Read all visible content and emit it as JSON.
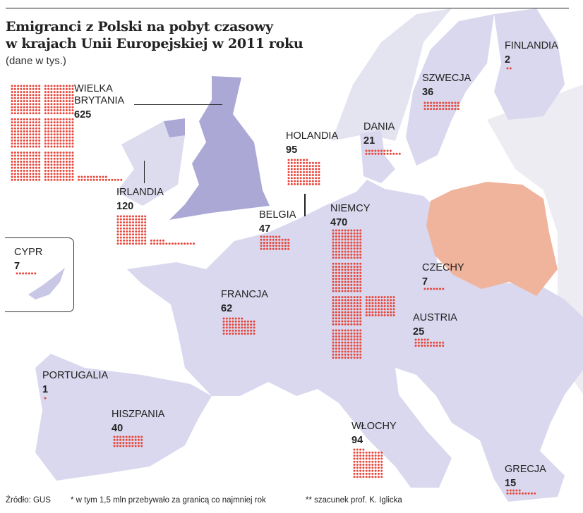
{
  "title_line1": "Emigranci z Polski na pobyt czasowy",
  "title_line2": "w krajach Unii Europejskiej w 2011 roku",
  "subtitle": "(dane w tys.)",
  "colors": {
    "eu_land": "#d9d8ee",
    "uk": "#aba8d6",
    "poland": "#f0b39c",
    "non_eu_land": "#ececf2",
    "dot": "#e8463b",
    "sea": "#ffffff"
  },
  "countries": [
    {
      "id": "uk",
      "label_lines": [
        "WIELKA",
        "BRYTANIA"
      ],
      "value": "625"
    },
    {
      "id": "ireland",
      "label_lines": [
        "IRLANDIA"
      ],
      "value": "120"
    },
    {
      "id": "cyprus",
      "label_lines": [
        "CYPR"
      ],
      "value": "7"
    },
    {
      "id": "netherlands",
      "label_lines": [
        "HOLANDIA"
      ],
      "value": "95"
    },
    {
      "id": "denmark",
      "label_lines": [
        "DANIA"
      ],
      "value": "21"
    },
    {
      "id": "sweden",
      "label_lines": [
        "SZWECJA"
      ],
      "value": "36"
    },
    {
      "id": "finland",
      "label_lines": [
        "FINLANDIA"
      ],
      "value": "2"
    },
    {
      "id": "belgium",
      "label_lines": [
        "BELGIA"
      ],
      "value": "47"
    },
    {
      "id": "germany",
      "label_lines": [
        "NIEMCY"
      ],
      "value": "470"
    },
    {
      "id": "czechia",
      "label_lines": [
        "CZECHY"
      ],
      "value": "7"
    },
    {
      "id": "austria",
      "label_lines": [
        "AUSTRIA"
      ],
      "value": "25"
    },
    {
      "id": "france",
      "label_lines": [
        "FRANCJA"
      ],
      "value": "62"
    },
    {
      "id": "portugal",
      "label_lines": [
        "PORTUGALIA"
      ],
      "value": "1"
    },
    {
      "id": "spain",
      "label_lines": [
        "HISZPANIA"
      ],
      "value": "40"
    },
    {
      "id": "italy",
      "label_lines": [
        "WŁOCHY"
      ],
      "value": "94"
    },
    {
      "id": "greece",
      "label_lines": [
        "GRECJA"
      ],
      "value": "15"
    }
  ],
  "footer": {
    "source": "Źródło: GUS",
    "note1": "* w tym 1,5 mln przebywało za granicą co najmniej rok",
    "note2": "** szacunek prof. K. Iglicka"
  }
}
